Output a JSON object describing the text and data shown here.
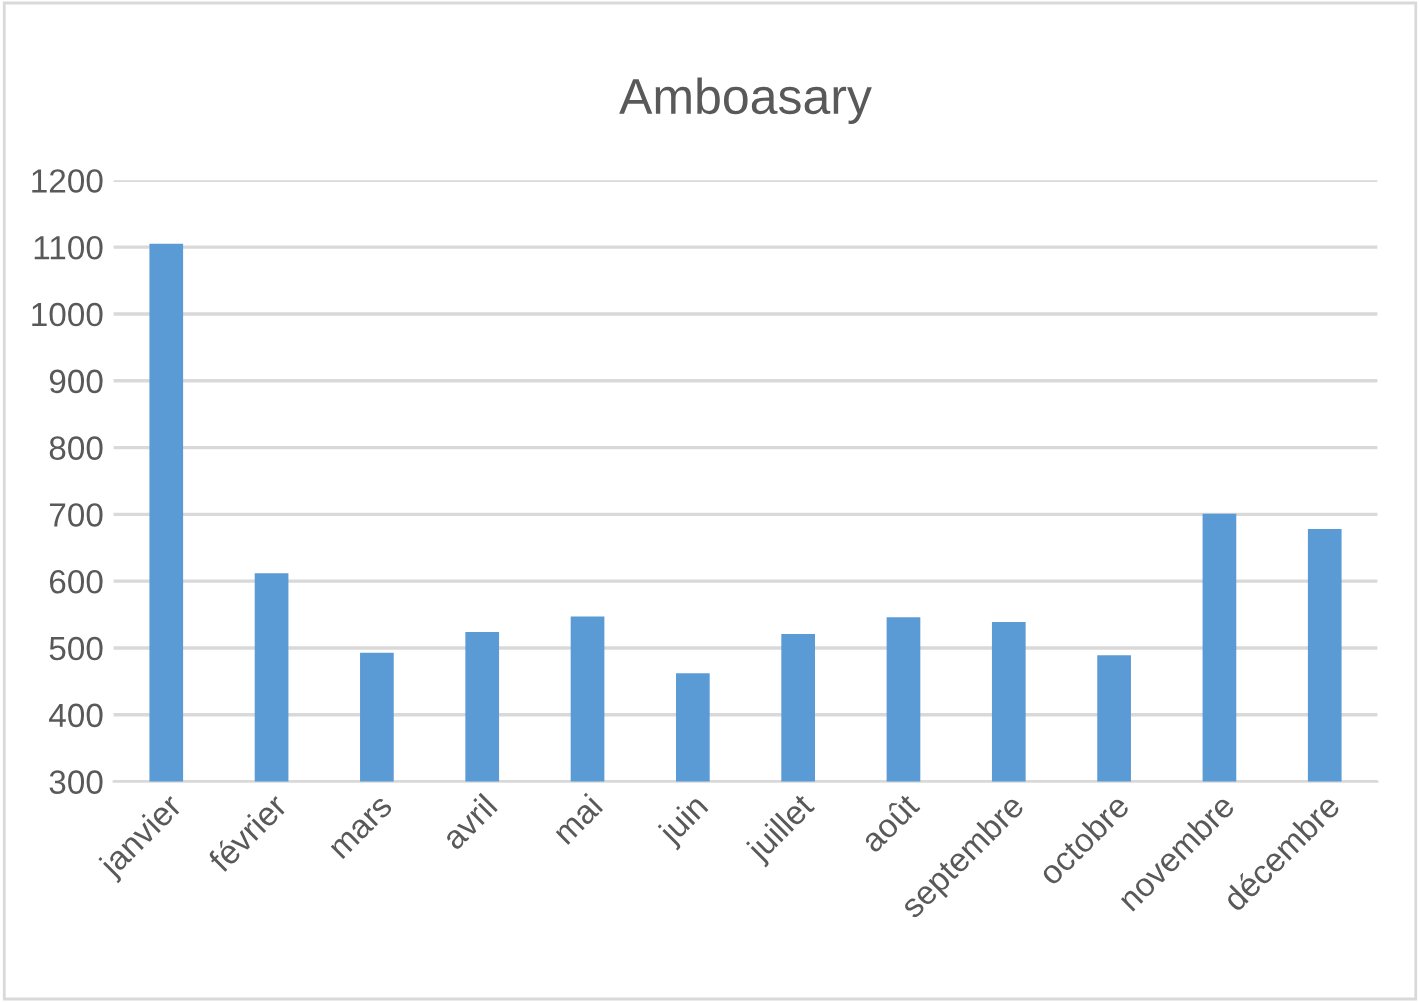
{
  "chart_data": {
    "type": "bar",
    "title": "Amboasary",
    "categories": [
      "janvier",
      "février",
      "mars",
      "avril",
      "mai",
      "juin",
      "juillet",
      "août",
      "septembre",
      "octobre",
      "novembre",
      "décembre"
    ],
    "values": [
      1105,
      612,
      493,
      524,
      547,
      462,
      521,
      546,
      539,
      489,
      701,
      678
    ],
    "color": "#5b9bd5",
    "ylim": [
      300,
      1200
    ],
    "yticks": [
      300,
      400,
      500,
      600,
      700,
      800,
      900,
      1000,
      1100,
      1200
    ],
    "grid": "y",
    "legend": false
  }
}
